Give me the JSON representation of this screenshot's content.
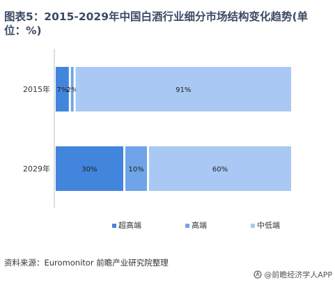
{
  "page": {
    "title": "图表5：2015-2029年中国白酒行业细分市场结构变化趋势(单位：%)",
    "source": "资料来源：Euromonitor 前瞻产业研究院整理",
    "credit": "@前瞻经济学人APP"
  },
  "chart_data": {
    "type": "bar",
    "orientation": "horizontal",
    "stacked": true,
    "categories": [
      "2015年",
      "2029年"
    ],
    "series": [
      {
        "name": "超高端",
        "values": [
          7,
          30
        ],
        "labels": [
          "7%",
          "30%"
        ],
        "color": "#4285dc"
      },
      {
        "name": "高端",
        "values": [
          2,
          10
        ],
        "labels": [
          "2%",
          "10%"
        ],
        "color": "#6fa5e8"
      },
      {
        "name": "中低端",
        "values": [
          91,
          60
        ],
        "labels": [
          "91%",
          "60%"
        ],
        "color": "#a9c8f3"
      }
    ],
    "xlim": [
      0,
      100
    ],
    "legend_position": "bottom",
    "grid": false
  }
}
